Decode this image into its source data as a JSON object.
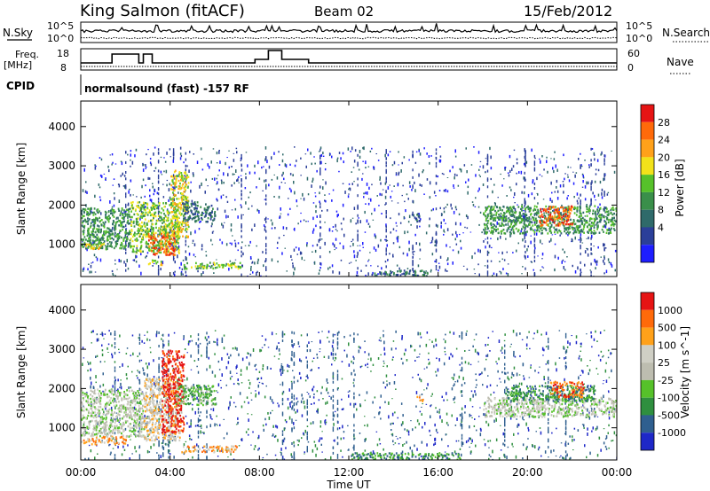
{
  "header": {
    "station": "King Salmon (fitACF)",
    "beam": "Beam 02",
    "date": "15/Feb/2012"
  },
  "params": {
    "nsky_label": "N.Sky",
    "nsearch_label": "N.Search",
    "nsky_ticks": [
      "10^5",
      "10^0"
    ],
    "nsearch_ticks": [
      "10^5",
      "10^0"
    ],
    "freq_label": "Freq.",
    "freq_unit": "[MHz]",
    "freq_ticks": [
      "18",
      "8"
    ],
    "nave_label": "Nave",
    "nave_ticks": [
      "60",
      "0"
    ],
    "cpid_label": "CPID",
    "cpid_text": "normalsound (fast) -157 RF"
  },
  "axes": {
    "ylabel": "Slant Range [km]",
    "xlabel": "Time UT",
    "x_ticks": [
      "00:00",
      "04:00",
      "08:00",
      "12:00",
      "16:00",
      "20:00",
      "00:00"
    ],
    "y_ticks": [
      "1000",
      "2000",
      "3000",
      "4000"
    ]
  },
  "colors": {
    "power": [
      "#1e1eff",
      "#2b3f99",
      "#2f6a6a",
      "#3a8f4a",
      "#56c12a",
      "#f2e21a",
      "#ffa11a",
      "#ff6a0a",
      "#e61414"
    ],
    "velocity": [
      "#1e28c8",
      "#2f5f8f",
      "#2f8f3f",
      "#56c12a",
      "#bdbdb0",
      "#cfcfc5",
      "#ffa11a",
      "#ff6a0a",
      "#e61414"
    ]
  },
  "chart_data": [
    {
      "type": "heatmap",
      "name": "power",
      "cbar_label": "Power [dB]",
      "cbar_ticks": [
        "4",
        "8",
        "12",
        "16",
        "20",
        "24",
        "28"
      ],
      "x_range_hours": [
        0,
        24
      ],
      "y_range_km": [
        180,
        4650
      ],
      "regions": [
        {
          "t": [
            0,
            2.2
          ],
          "r": [
            900,
            1950
          ],
          "level": 3
        },
        {
          "t": [
            0,
            1.0
          ],
          "r": [
            900,
            1050
          ],
          "level": 5
        },
        {
          "t": [
            2.2,
            4.4
          ],
          "r": [
            800,
            2100
          ],
          "level": 4
        },
        {
          "t": [
            3.0,
            4.2
          ],
          "r": [
            750,
            1300
          ],
          "level": 7
        },
        {
          "t": [
            4.0,
            4.8
          ],
          "r": [
            1200,
            2900
          ],
          "level": 5
        },
        {
          "t": [
            4.5,
            6.0
          ],
          "r": [
            1600,
            2100
          ],
          "level": 2
        },
        {
          "t": [
            4.6,
            7.2
          ],
          "r": [
            400,
            560
          ],
          "level": 4
        },
        {
          "t": [
            3.0,
            3.6
          ],
          "r": [
            500,
            620
          ],
          "level": 5
        },
        {
          "t": [
            13.0,
            15.5
          ],
          "r": [
            200,
            360
          ],
          "level": 2
        },
        {
          "t": [
            18.0,
            24.0
          ],
          "r": [
            1300,
            2000
          ],
          "level": 3
        },
        {
          "t": [
            20.5,
            22.0
          ],
          "r": [
            1500,
            2000
          ],
          "level": 7
        },
        {
          "t": [
            14.8,
            15.2
          ],
          "r": [
            1600,
            1800
          ],
          "level": 2
        }
      ]
    },
    {
      "type": "heatmap",
      "name": "velocity",
      "cbar_label": "Velocity [m s^-1]",
      "cbar_ticks": [
        "1000",
        "500",
        "100",
        "25",
        "-25",
        "-100",
        "-500",
        "-1000"
      ],
      "x_range_hours": [
        0,
        24
      ],
      "y_range_km": [
        180,
        4650
      ],
      "regions": [
        {
          "t": [
            0,
            2.8
          ],
          "r": [
            800,
            2000
          ],
          "level": 4
        },
        {
          "t": [
            0,
            2.0
          ],
          "r": [
            600,
            800
          ],
          "level": 6
        },
        {
          "t": [
            2.8,
            4.5
          ],
          "r": [
            700,
            2300
          ],
          "level": 5
        },
        {
          "t": [
            3.6,
            4.6
          ],
          "r": [
            900,
            3000
          ],
          "level": 8
        },
        {
          "t": [
            4.5,
            7.0
          ],
          "r": [
            400,
            560
          ],
          "level": 6
        },
        {
          "t": [
            4.2,
            6.0
          ],
          "r": [
            1600,
            2100
          ],
          "level": 3
        },
        {
          "t": [
            12.0,
            17.0
          ],
          "r": [
            200,
            380
          ],
          "level": 2
        },
        {
          "t": [
            15.0,
            15.3
          ],
          "r": [
            1700,
            1850
          ],
          "level": 6
        },
        {
          "t": [
            18.0,
            24.0
          ],
          "r": [
            1300,
            1800
          ],
          "level": 4
        },
        {
          "t": [
            19.0,
            23.0
          ],
          "r": [
            1700,
            2100
          ],
          "level": 2
        },
        {
          "t": [
            21.0,
            22.5
          ],
          "r": [
            1800,
            2200
          ],
          "level": 7
        }
      ]
    }
  ]
}
